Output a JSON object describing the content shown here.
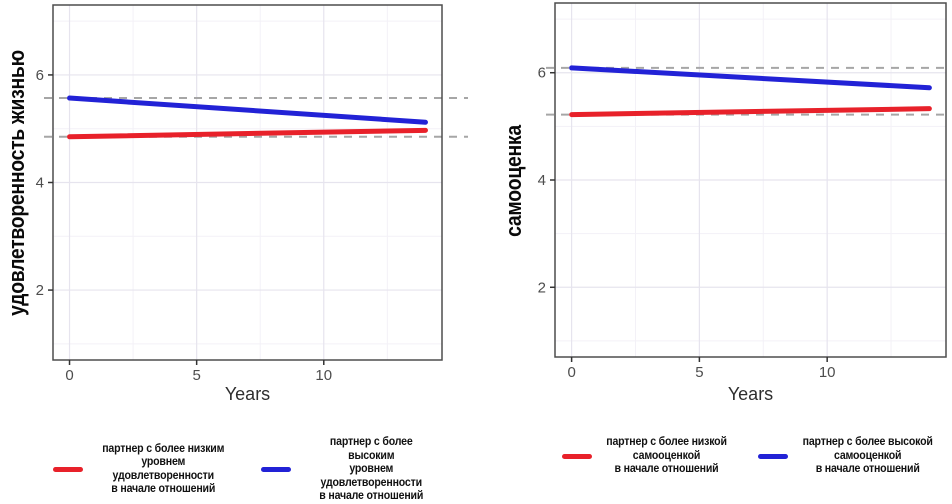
{
  "page": {
    "background": "#ffffff"
  },
  "colors": {
    "red_series": "#e8212a",
    "blue_series": "#2222d6",
    "reference_dash": "#a6a6a6",
    "panel_border": "#4d4d4d",
    "tick_label": "#4d4d4d",
    "axis_title": "#2e2e2e",
    "grid_major": "#e6e4ee",
    "grid_minor": "#f3f1f7"
  },
  "chart_data": [
    {
      "type": "line",
      "title": "",
      "ylabel": "удовлетворенность жизнью",
      "xlabel": "Years",
      "x": [
        0,
        14
      ],
      "xlim": [
        -0.65,
        14.65
      ],
      "ylim": [
        0.7,
        7.3
      ],
      "x_ticks": [
        0,
        5,
        10
      ],
      "y_ticks": [
        2,
        4,
        6
      ],
      "x_minor_gridlines": [
        2.5,
        7.5,
        12.5
      ],
      "y_minor_gridlines": [
        1,
        3,
        5,
        7
      ],
      "grid": "on",
      "legend_position": "bottom",
      "series": [
        {
          "name": "партнер с более низким\nуровнем удовлетворенности\nв начале отношений",
          "color": "#e8212a",
          "x": [
            0,
            14
          ],
          "values": [
            4.85,
            4.97
          ],
          "dashed_reference_at": 4.85
        },
        {
          "name": "партнер с более высоким\nуровнем удовлетворенности\nв начале отношений",
          "color": "#2222d6",
          "x": [
            0,
            14
          ],
          "values": [
            5.57,
            5.12
          ],
          "dashed_reference_at": 5.57
        }
      ]
    },
    {
      "type": "line",
      "title": "",
      "ylabel": "самооценка",
      "xlabel": "Years",
      "x": [
        0,
        14
      ],
      "xlim": [
        -0.65,
        14.65
      ],
      "ylim": [
        0.7,
        7.3
      ],
      "x_ticks": [
        0,
        5,
        10
      ],
      "y_ticks": [
        2,
        4,
        6
      ],
      "x_minor_gridlines": [
        2.5,
        7.5,
        12.5
      ],
      "y_minor_gridlines": [
        1,
        3,
        5,
        7
      ],
      "grid": "on",
      "legend_position": "bottom",
      "series": [
        {
          "name": "партнер с более низкой\nсамооценкой\nв начале отношений",
          "color": "#e8212a",
          "x": [
            0,
            14
          ],
          "values": [
            5.22,
            5.33
          ],
          "dashed_reference_at": 5.22
        },
        {
          "name": "партнер с более высокой\nсамооценкой\nв начале отношений",
          "color": "#2222d6",
          "x": [
            0,
            14
          ],
          "values": [
            6.09,
            5.72
          ],
          "dashed_reference_at": 6.09
        }
      ]
    }
  ]
}
